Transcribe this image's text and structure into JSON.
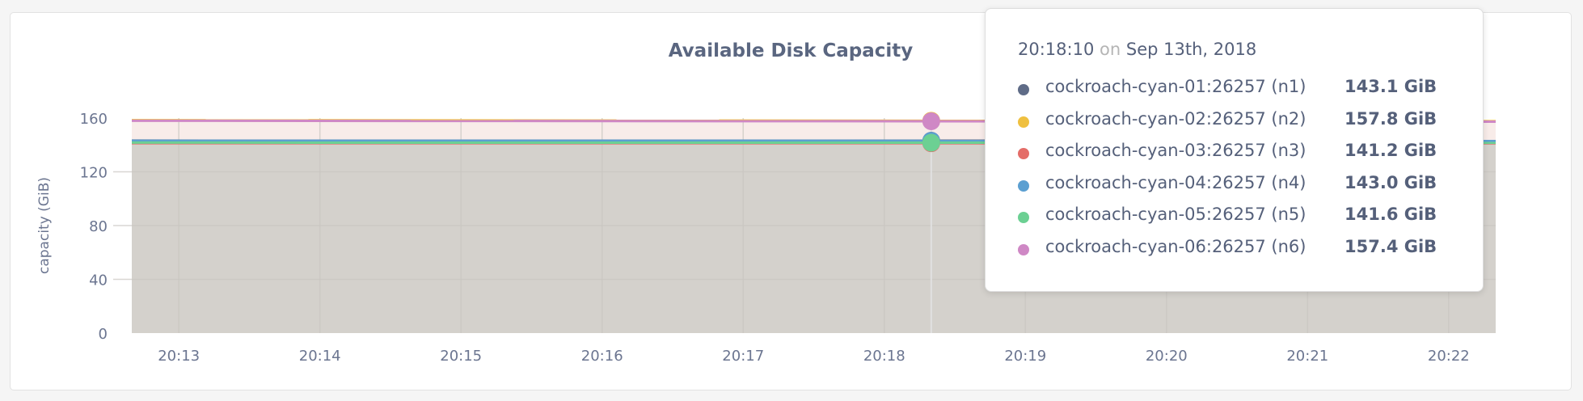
{
  "chart_data": {
    "type": "area",
    "title": "Available Disk Capacity",
    "ylabel": "capacity (GiB)",
    "xlabel": "",
    "ylim": [
      0,
      160
    ],
    "yticks": [
      "0",
      "40",
      "80",
      "120",
      "160"
    ],
    "xlim": [
      "20:12:40",
      "20:22:20"
    ],
    "xticks": [
      "20:13",
      "20:14",
      "20:15",
      "20:16",
      "20:17",
      "20:18",
      "20:19",
      "20:20",
      "20:21",
      "20:22"
    ],
    "grid": true,
    "hover_time": "20:18:10",
    "series": [
      {
        "name": "cockroach-cyan-01:26257 (n1)",
        "color": "#5f6c87",
        "start": 143.2,
        "end": 143.1
      },
      {
        "name": "cockroach-cyan-02:26257 (n2)",
        "color": "#efc040",
        "start": 158.4,
        "end": 157.7
      },
      {
        "name": "cockroach-cyan-03:26257 (n3)",
        "color": "#e46d68",
        "start": 141.3,
        "end": 141.2
      },
      {
        "name": "cockroach-cyan-04:26257 (n4)",
        "color": "#5b9fd1",
        "start": 143.1,
        "end": 143.0
      },
      {
        "name": "cockroach-cyan-05:26257 (n5)",
        "color": "#6cd093",
        "start": 141.7,
        "end": 141.6
      },
      {
        "name": "cockroach-cyan-06:26257 (n6)",
        "color": "#cf88c5",
        "start": 158.0,
        "end": 157.3
      }
    ]
  },
  "tooltip": {
    "time": "20:18:10",
    "on": "on",
    "date": "Sep 13th, 2018",
    "rows": [
      {
        "name": "cockroach-cyan-01:26257 (n1)",
        "value": "143.1 GiB",
        "color": "#5f6c87"
      },
      {
        "name": "cockroach-cyan-02:26257 (n2)",
        "value": "157.8 GiB",
        "color": "#efc040"
      },
      {
        "name": "cockroach-cyan-03:26257 (n3)",
        "value": "141.2 GiB",
        "color": "#e46d68"
      },
      {
        "name": "cockroach-cyan-04:26257 (n4)",
        "value": "143.0 GiB",
        "color": "#5b9fd1"
      },
      {
        "name": "cockroach-cyan-05:26257 (n5)",
        "value": "141.6 GiB",
        "color": "#6cd093"
      },
      {
        "name": "cockroach-cyan-06:26257 (n6)",
        "value": "157.4 GiB",
        "color": "#cf88c5"
      }
    ]
  }
}
